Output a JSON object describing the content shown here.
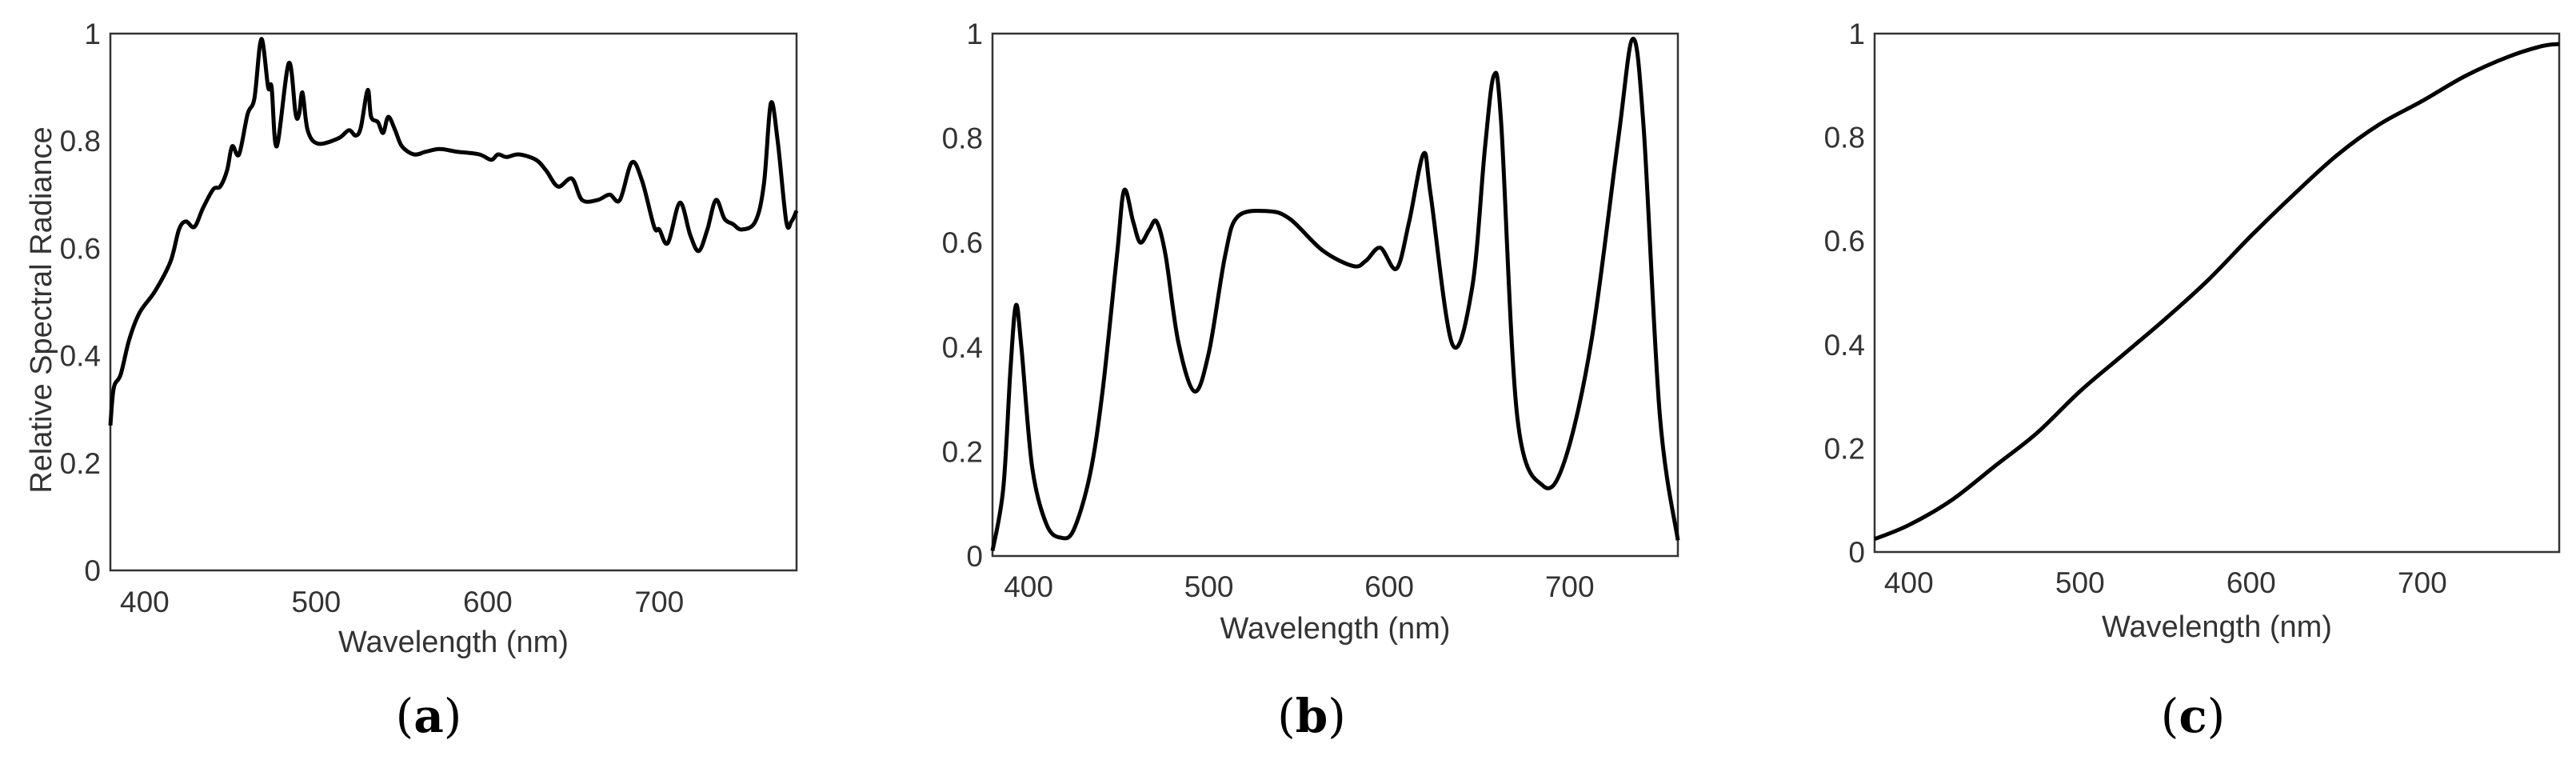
{
  "chart_data": [
    {
      "type": "line",
      "panel_label": "(a)",
      "panel_letter": "a",
      "xlabel": "Wavelength (nm)",
      "ylabel": "Relative Spectral Radiance",
      "xlim": [
        380,
        780
      ],
      "ylim": [
        0,
        1
      ],
      "xticks": [
        "400",
        "500",
        "600",
        "700"
      ],
      "yticks": [
        "0",
        "0.2",
        "0.4",
        "0.6",
        "0.8",
        "1"
      ],
      "grid": false,
      "line_color": "#000000",
      "series": [
        {
          "x": [
            380,
            382,
            386,
            391,
            397,
            406,
            415,
            420,
            424,
            429,
            434,
            440,
            444,
            448,
            451,
            455,
            460,
            464,
            468,
            472,
            474,
            477,
            484,
            488,
            490,
            492,
            495,
            501,
            513,
            519,
            523,
            526,
            530,
            532,
            536,
            539,
            542,
            546,
            550,
            557,
            564,
            572,
            582,
            595,
            602,
            606,
            611,
            618,
            628,
            634,
            641,
            649,
            655,
            664,
            671,
            677,
            684,
            690,
            697,
            700,
            705,
            712,
            718,
            723,
            728,
            733,
            738,
            743,
            748,
            756,
            761,
            765,
            769,
            774,
            777,
            780
          ],
          "y": [
            0.27,
            0.34,
            0.365,
            0.43,
            0.48,
            0.52,
            0.575,
            0.635,
            0.65,
            0.64,
            0.675,
            0.71,
            0.715,
            0.745,
            0.79,
            0.775,
            0.85,
            0.88,
            0.99,
            0.9,
            0.9,
            0.79,
            0.945,
            0.85,
            0.85,
            0.89,
            0.82,
            0.795,
            0.805,
            0.82,
            0.81,
            0.825,
            0.895,
            0.845,
            0.835,
            0.815,
            0.845,
            0.82,
            0.79,
            0.775,
            0.78,
            0.785,
            0.78,
            0.775,
            0.765,
            0.775,
            0.77,
            0.775,
            0.765,
            0.745,
            0.715,
            0.73,
            0.69,
            0.69,
            0.7,
            0.69,
            0.76,
            0.725,
            0.64,
            0.635,
            0.61,
            0.685,
            0.625,
            0.595,
            0.635,
            0.69,
            0.655,
            0.645,
            0.635,
            0.65,
            0.72,
            0.87,
            0.8,
            0.65,
            0.65,
            0.67
          ]
        }
      ]
    },
    {
      "type": "line",
      "panel_label": "(b)",
      "panel_letter": "b",
      "xlabel": "Wavelength (nm)",
      "ylabel": "",
      "xlim": [
        380,
        760
      ],
      "ylim": [
        0,
        1
      ],
      "xticks": [
        "400",
        "500",
        "600",
        "700"
      ],
      "yticks": [
        "0",
        "0.2",
        "0.4",
        "0.6",
        "0.8",
        "1"
      ],
      "grid": false,
      "line_color": "#000000",
      "series": [
        {
          "x": [
            380,
            386,
            390,
            393,
            396,
            402,
            410,
            418,
            425,
            434,
            441,
            449,
            453,
            458,
            462,
            467,
            471,
            476,
            483,
            492,
            500,
            509,
            516,
            533,
            545,
            563,
            580,
            587,
            595,
            604,
            611,
            619,
            623,
            635,
            646,
            653,
            658,
            662,
            671,
            685,
            697,
            712,
            727,
            735,
            741,
            750,
            760
          ],
          "y": [
            0.01,
            0.13,
            0.36,
            0.48,
            0.4,
            0.17,
            0.06,
            0.035,
            0.05,
            0.155,
            0.315,
            0.575,
            0.7,
            0.64,
            0.6,
            0.625,
            0.64,
            0.575,
            0.41,
            0.315,
            0.39,
            0.575,
            0.65,
            0.66,
            0.645,
            0.585,
            0.555,
            0.565,
            0.59,
            0.55,
            0.64,
            0.77,
            0.69,
            0.405,
            0.515,
            0.78,
            0.92,
            0.83,
            0.265,
            0.135,
            0.18,
            0.41,
            0.8,
            0.99,
            0.82,
            0.27,
            0.03
          ]
        }
      ]
    },
    {
      "type": "line",
      "panel_label": "(c)",
      "panel_letter": "c",
      "xlabel": "Wavelength (nm)",
      "ylabel": "",
      "xlim": [
        380,
        780
      ],
      "ylim": [
        0,
        1
      ],
      "xticks": [
        "400",
        "500",
        "600",
        "700"
      ],
      "yticks": [
        "0",
        "0.2",
        "0.4",
        "0.6",
        "0.8",
        "1"
      ],
      "grid": false,
      "line_color": "#000000",
      "series": [
        {
          "x": [
            380,
            400,
            425,
            450,
            475,
            500,
            525,
            550,
            575,
            600,
            625,
            650,
            675,
            700,
            725,
            750,
            770,
            780
          ],
          "y": [
            0.025,
            0.052,
            0.1,
            0.165,
            0.23,
            0.31,
            0.38,
            0.45,
            0.525,
            0.61,
            0.69,
            0.765,
            0.825,
            0.87,
            0.918,
            0.955,
            0.976,
            0.98
          ]
        }
      ]
    }
  ]
}
